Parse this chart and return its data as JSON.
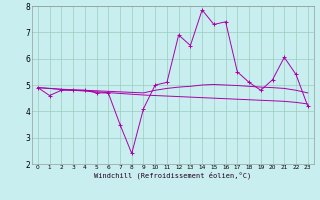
{
  "xlabel": "Windchill (Refroidissement éolien,°C)",
  "xlim": [
    -0.5,
    23.5
  ],
  "ylim": [
    2,
    8
  ],
  "yticks": [
    2,
    3,
    4,
    5,
    6,
    7,
    8
  ],
  "xticks": [
    0,
    1,
    2,
    3,
    4,
    5,
    6,
    7,
    8,
    9,
    10,
    11,
    12,
    13,
    14,
    15,
    16,
    17,
    18,
    19,
    20,
    21,
    22,
    23
  ],
  "bg_color": "#c8eef0",
  "grid_color": "#99ccbb",
  "line_color": "#aa00aa",
  "line1_x": [
    0,
    1,
    2,
    3,
    4,
    5,
    6,
    7,
    8,
    9,
    10,
    11,
    12,
    13,
    14,
    15,
    16,
    17,
    18,
    19,
    20,
    21,
    22,
    23
  ],
  "line1_y": [
    4.9,
    4.6,
    4.8,
    4.8,
    4.8,
    4.7,
    4.7,
    3.5,
    2.4,
    4.1,
    5.0,
    5.1,
    6.9,
    6.5,
    7.85,
    7.3,
    7.4,
    5.5,
    5.1,
    4.8,
    5.2,
    6.05,
    5.4,
    4.2
  ],
  "line2_x": [
    0,
    1,
    2,
    3,
    4,
    5,
    6,
    7,
    8,
    9,
    10,
    11,
    12,
    13,
    14,
    15,
    16,
    17,
    18,
    19,
    20,
    21,
    22,
    23
  ],
  "line2_y": [
    4.9,
    4.87,
    4.84,
    4.82,
    4.8,
    4.78,
    4.76,
    4.74,
    4.72,
    4.7,
    4.8,
    4.87,
    4.92,
    4.95,
    5.0,
    5.02,
    5.0,
    4.98,
    4.95,
    4.92,
    4.9,
    4.87,
    4.8,
    4.7
  ],
  "line3_x": [
    0,
    1,
    2,
    3,
    4,
    5,
    6,
    7,
    8,
    9,
    10,
    11,
    12,
    13,
    14,
    15,
    16,
    17,
    18,
    19,
    20,
    21,
    22,
    23
  ],
  "line3_y": [
    4.9,
    4.87,
    4.83,
    4.8,
    4.77,
    4.74,
    4.71,
    4.68,
    4.65,
    4.62,
    4.6,
    4.58,
    4.56,
    4.54,
    4.52,
    4.5,
    4.48,
    4.46,
    4.44,
    4.42,
    4.4,
    4.38,
    4.34,
    4.28
  ]
}
